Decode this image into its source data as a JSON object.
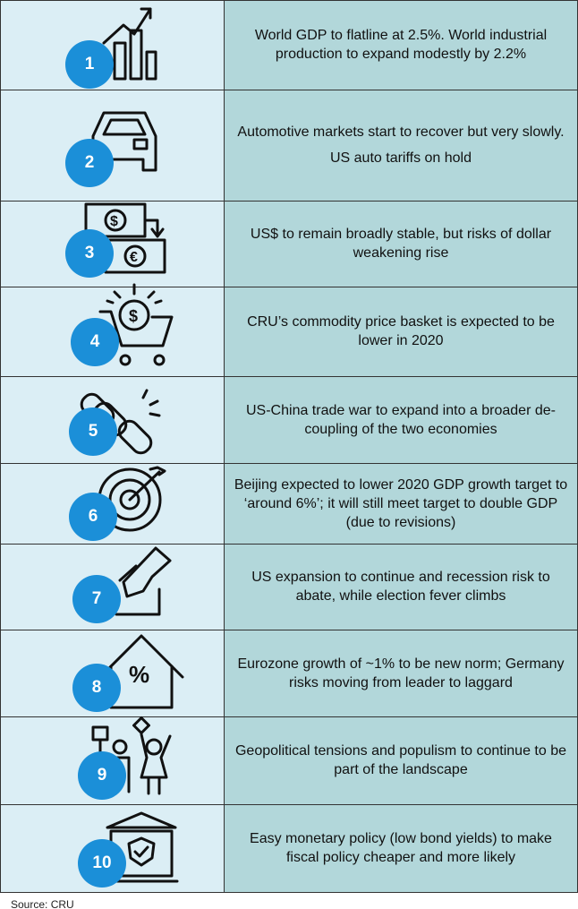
{
  "rows": [
    {
      "number": "1",
      "text": [
        "World GDP to flatline at 2.5%. World industrial production to expand modestly by 2.2%"
      ]
    },
    {
      "number": "2",
      "text": [
        "Automotive markets start to recover but very slowly.",
        "US auto tariffs on hold"
      ]
    },
    {
      "number": "3",
      "text": [
        "US$ to remain broadly stable, but risks of dollar weakening rise"
      ]
    },
    {
      "number": "4",
      "text": [
        "CRU’s commodity price basket is expected to be lower in 2020"
      ]
    },
    {
      "number": "5",
      "text": [
        "US-China trade war to expand into a broader de-coupling of the two economies"
      ]
    },
    {
      "number": "6",
      "text": [
        "Beijing expected to lower 2020 GDP growth target to ‘around 6%’; it will still meet target to double GDP (due to revisions)"
      ]
    },
    {
      "number": "7",
      "text": [
        "US expansion to continue and recession risk to abate, while election fever climbs"
      ]
    },
    {
      "number": "8",
      "text": [
        "Eurozone growth of ~1% to be new norm; Germany risks moving from leader to laggard"
      ]
    },
    {
      "number": "9",
      "text": [
        "Geopolitical tensions and populism to continue to be part of the landscape"
      ]
    },
    {
      "number": "10",
      "text": [
        "Easy monetary policy (low bond yields) to make fiscal policy cheaper and more likely"
      ]
    }
  ],
  "source": "Source: CRU"
}
